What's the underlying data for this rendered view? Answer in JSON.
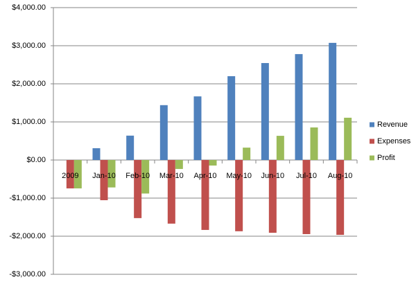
{
  "chart_data": {
    "type": "bar",
    "categories": [
      "2009",
      "Jan-10",
      "Feb-10",
      "Mar-10",
      "Apr-10",
      "May-10",
      "Jun-10",
      "Jul-10",
      "Aug-10"
    ],
    "series": [
      {
        "name": "Revenue",
        "color": "#4f81bd",
        "values": [
          0,
          310,
          640,
          1440,
          1670,
          2200,
          2545,
          2780,
          3075
        ]
      },
      {
        "name": "Expenses",
        "color": "#c0504d",
        "values": [
          -745,
          -1055,
          -1525,
          -1670,
          -1835,
          -1870,
          -1910,
          -1945,
          -1965
        ]
      },
      {
        "name": "Profit",
        "color": "#9bbb59",
        "values": [
          -745,
          -720,
          -880,
          -235,
          -145,
          325,
          635,
          855,
          1110
        ]
      }
    ],
    "ylim": [
      -3000,
      4000
    ],
    "yticks": [
      {
        "value": 4000,
        "label": "$4,000.00"
      },
      {
        "value": 3000,
        "label": "$3,000.00"
      },
      {
        "value": 2000,
        "label": "$2,000.00"
      },
      {
        "value": 1000,
        "label": "$1,000.00"
      },
      {
        "value": 0,
        "label": "$0.00"
      },
      {
        "value": -1000,
        "label": "-$1,000.00"
      },
      {
        "value": -2000,
        "label": "-$2,000.00"
      },
      {
        "value": -3000,
        "label": "-$3,000.00"
      }
    ],
    "grid": true,
    "legend": "right"
  }
}
